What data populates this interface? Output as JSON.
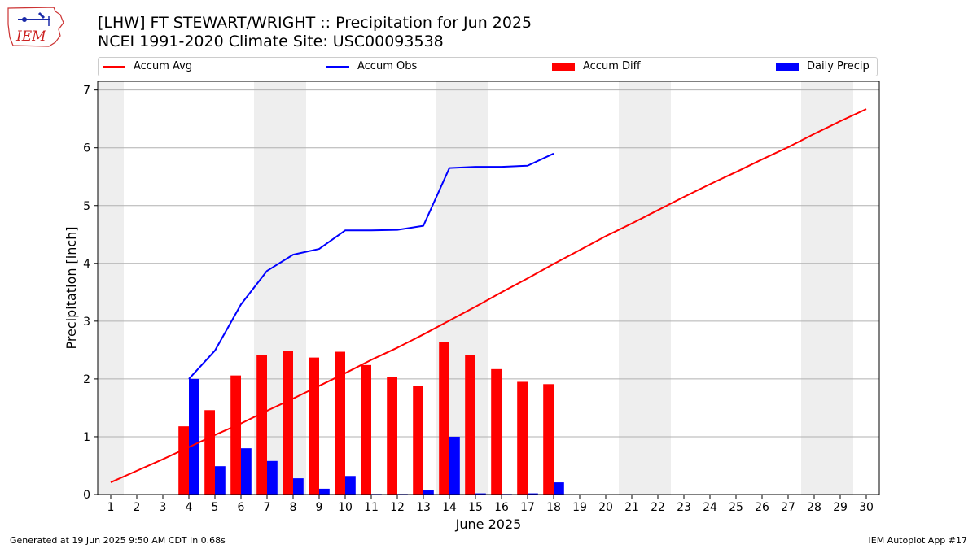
{
  "header": {
    "title_line1": "[LHW] FT STEWART/WRIGHT :: Precipitation for Jun 2025",
    "title_line2": "NCEI 1991-2020 Climate Site: USC00093538",
    "logo_text": "IEM"
  },
  "footer": {
    "left": "Generated at 19 Jun 2025 9:50 AM CDT in 0.68s",
    "right": "IEM Autoplot App #17"
  },
  "colors": {
    "avg": "#ff0000",
    "obs": "#0000ff",
    "diff": "#ff0000",
    "daily": "#0000ff",
    "weekend": "#eeeeee",
    "grid": "#b0b0b0"
  },
  "chart_data": {
    "type": "bar",
    "xlabel": "June 2025",
    "ylabel": "Precipitation [inch]",
    "ylim": [
      0,
      7.15
    ],
    "yticks": [
      0,
      1,
      2,
      3,
      4,
      5,
      6,
      7
    ],
    "xlim": [
      0.5,
      30.5
    ],
    "days": [
      1,
      2,
      3,
      4,
      5,
      6,
      7,
      8,
      9,
      10,
      11,
      12,
      13,
      14,
      15,
      16,
      17,
      18,
      19,
      20,
      21,
      22,
      23,
      24,
      25,
      26,
      27,
      28,
      29,
      30
    ],
    "day_labels": [
      "1",
      "2",
      "3",
      "4",
      "5",
      "6",
      "7",
      "8",
      "9",
      "10",
      "11",
      "12",
      "13",
      "14",
      "15",
      "16",
      "17",
      "18",
      "19",
      "20",
      "21",
      "22",
      "23",
      "24",
      "25",
      "26",
      "27",
      "28",
      "29",
      "30"
    ],
    "shaded_days": [
      1,
      7,
      8,
      14,
      15,
      21,
      22,
      28,
      29
    ],
    "grid": true,
    "legend": {
      "placement": "top",
      "entries": [
        "Accum Avg",
        "Accum Obs",
        "Accum Diff",
        "Daily Precip"
      ]
    },
    "series": [
      {
        "name": "Accum Avg",
        "kind": "line",
        "x": [
          1,
          2,
          3,
          4,
          5,
          6,
          7,
          8,
          9,
          10,
          11,
          12,
          13,
          14,
          15,
          16,
          17,
          18,
          19,
          20,
          21,
          22,
          23,
          24,
          25,
          26,
          27,
          28,
          29,
          30
        ],
        "values": [
          0.21,
          0.41,
          0.61,
          0.82,
          1.03,
          1.23,
          1.45,
          1.66,
          1.88,
          2.1,
          2.33,
          2.54,
          2.77,
          3.01,
          3.25,
          3.5,
          3.74,
          3.99,
          4.23,
          4.47,
          4.69,
          4.92,
          5.15,
          5.37,
          5.58,
          5.8,
          6.01,
          6.24,
          6.46,
          6.67
        ]
      },
      {
        "name": "Accum Obs",
        "kind": "line",
        "x": [
          4,
          5,
          6,
          7,
          8,
          9,
          10,
          11,
          12,
          13,
          14,
          15,
          16,
          17,
          18
        ],
        "values": [
          2.0,
          2.49,
          3.29,
          3.87,
          4.15,
          4.25,
          4.57,
          4.57,
          4.58,
          4.65,
          5.65,
          5.67,
          5.67,
          5.69,
          5.9
        ]
      },
      {
        "name": "Accum Diff",
        "kind": "bar",
        "x": [
          4,
          5,
          6,
          7,
          8,
          9,
          10,
          11,
          12,
          13,
          14,
          15,
          16,
          17,
          18
        ],
        "values": [
          1.18,
          1.46,
          2.06,
          2.42,
          2.49,
          2.37,
          2.47,
          2.24,
          2.04,
          1.88,
          2.64,
          2.42,
          2.17,
          1.95,
          1.91
        ]
      },
      {
        "name": "Daily Precip",
        "kind": "bar",
        "x": [
          4,
          5,
          6,
          7,
          8,
          9,
          10,
          11,
          12,
          13,
          14,
          15,
          16,
          17,
          18
        ],
        "values": [
          2.0,
          0.49,
          0.8,
          0.58,
          0.28,
          0.1,
          0.32,
          0.01,
          0.01,
          0.07,
          1.0,
          0.02,
          0.01,
          0.02,
          0.21
        ]
      }
    ]
  }
}
